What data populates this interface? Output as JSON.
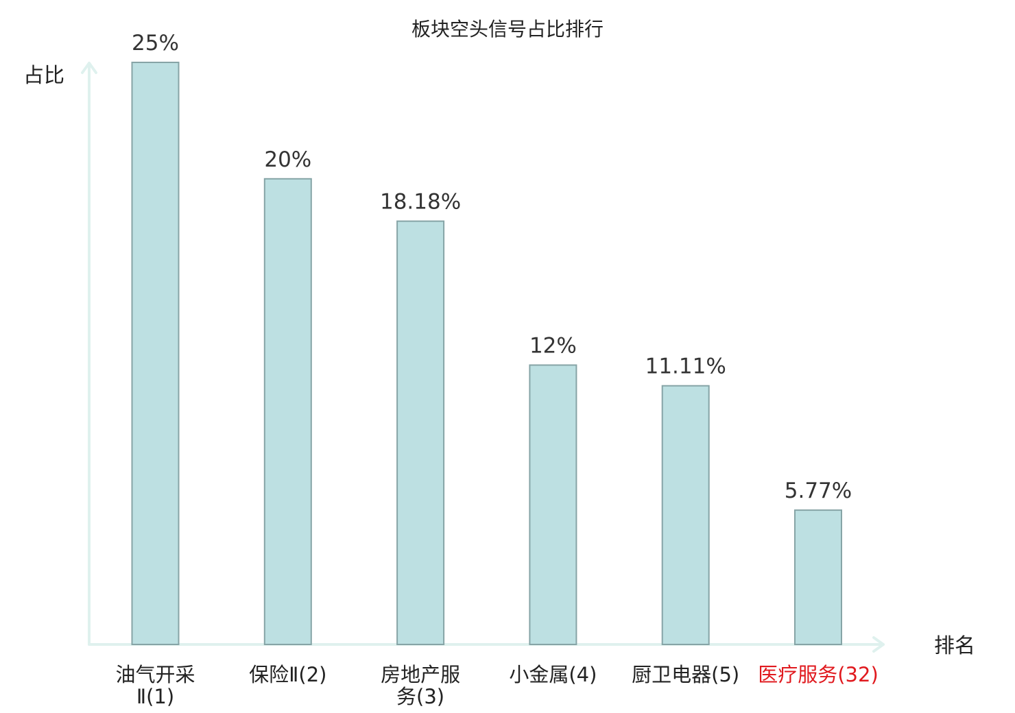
{
  "chart_data": {
    "type": "bar",
    "title": "板块空头信号占比排行",
    "ylabel": "占比",
    "xlabel": "排名",
    "categories": [
      "油气开采Ⅱ(1)",
      "保险Ⅱ(2)",
      "房地产服务(3)",
      "小金属(4)",
      "厨卫电器(5)",
      "医疗服务(32)"
    ],
    "tick_lines": [
      [
        "油气开采",
        "Ⅱ(1)"
      ],
      [
        "保险Ⅱ(2)"
      ],
      [
        "房地产服",
        "务(3)"
      ],
      [
        "小金属(4)"
      ],
      [
        "厨卫电器(5)"
      ],
      [
        "医疗服务(32)"
      ]
    ],
    "values": [
      25,
      20,
      18.18,
      12,
      11.11,
      5.77
    ],
    "value_labels": [
      "25%",
      "20%",
      "18.18%",
      "12%",
      "11.11%",
      "5.77%"
    ],
    "highlight_index": 5,
    "ylim": [
      0,
      25
    ],
    "grid": false,
    "legend": "none"
  },
  "colors": {
    "bar_fill": "#bde0e2",
    "bar_stroke": "#86a4a6",
    "axis": "#dff1ee",
    "text": "#222222",
    "highlight_text": "#e0191e"
  }
}
